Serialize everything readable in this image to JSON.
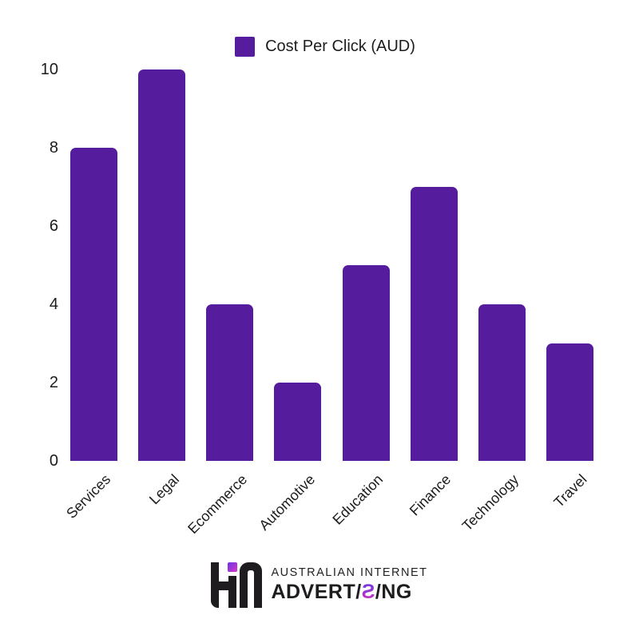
{
  "chart_data": {
    "type": "bar",
    "categories": [
      "Services",
      "Legal",
      "Ecommerce",
      "Automotive",
      "Education",
      "Finance",
      "Technology",
      "Travel"
    ],
    "values": [
      8,
      10,
      4,
      2,
      5,
      7,
      4,
      3
    ],
    "series": [
      {
        "name": "Cost Per Click (AUD)",
        "values": [
          8,
          10,
          4,
          2,
          5,
          7,
          4,
          3
        ]
      }
    ],
    "title": "",
    "xlabel": "",
    "ylabel": "",
    "ylim": [
      0,
      10
    ],
    "yticks": [
      0,
      2,
      4,
      6,
      8,
      10
    ],
    "grid": false,
    "legend_position": "top-center",
    "bar_color": "#551c9e",
    "x_tick_rotation_deg": -45
  },
  "legend": {
    "label": "Cost Per Click (AUD)",
    "swatch_color": "#551c9e"
  },
  "footer": {
    "brand_line1": "AUSTRALIAN INTERNET",
    "brand_line2_text": "ADVERTISING",
    "brand_line2_parts": [
      {
        "text": "ADVERT",
        "style": "solid"
      },
      {
        "text": "/",
        "style": "solid"
      },
      {
        "text": "Ƨ",
        "style": "gradient"
      },
      {
        "text": "/",
        "style": "solid"
      },
      {
        "text": "NG",
        "style": "solid"
      }
    ],
    "logo_color": "#1e1c1e",
    "logo_accent_gradient": [
      "#6a35e8",
      "#d935c8"
    ]
  },
  "colors": {
    "background": "#ffffff",
    "text": "#1c1c1c",
    "bar": "#551c9e"
  }
}
